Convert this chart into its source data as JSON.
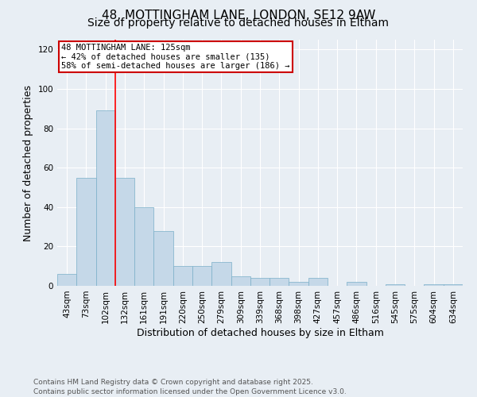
{
  "title": "48, MOTTINGHAM LANE, LONDON, SE12 9AW",
  "subtitle": "Size of property relative to detached houses in Eltham",
  "xlabel": "Distribution of detached houses by size in Eltham",
  "ylabel": "Number of detached properties",
  "footer": "Contains HM Land Registry data © Crown copyright and database right 2025.\nContains public sector information licensed under the Open Government Licence v3.0.",
  "categories": [
    "43sqm",
    "73sqm",
    "102sqm",
    "132sqm",
    "161sqm",
    "191sqm",
    "220sqm",
    "250sqm",
    "279sqm",
    "309sqm",
    "339sqm",
    "368sqm",
    "398sqm",
    "427sqm",
    "457sqm",
    "486sqm",
    "516sqm",
    "545sqm",
    "575sqm",
    "604sqm",
    "634sqm"
  ],
  "values": [
    6,
    55,
    89,
    55,
    40,
    28,
    10,
    10,
    12,
    5,
    4,
    4,
    2,
    4,
    0,
    2,
    0,
    1,
    0,
    1,
    1
  ],
  "bar_color": "#c5d8e8",
  "bar_edge_color": "#7aafc8",
  "ylim": [
    0,
    125
  ],
  "yticks": [
    0,
    20,
    40,
    60,
    80,
    100,
    120
  ],
  "red_line_x": 2.5,
  "annotation_text_line1": "48 MOTTINGHAM LANE: 125sqm",
  "annotation_text_line2": "← 42% of detached houses are smaller (135)",
  "annotation_text_line3": "58% of semi-detached houses are larger (186) →",
  "annotation_box_color": "#ffffff",
  "annotation_box_edge": "#cc0000",
  "background_color": "#e8eef4",
  "grid_color": "#ffffff",
  "title_fontsize": 11,
  "subtitle_fontsize": 10,
  "axis_label_fontsize": 9,
  "tick_fontsize": 7.5,
  "annotation_fontsize": 7.5,
  "footer_fontsize": 6.5
}
